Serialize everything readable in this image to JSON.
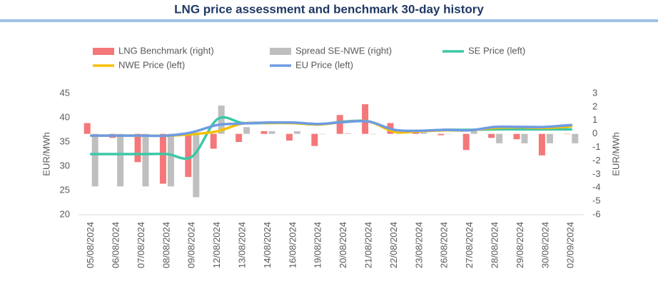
{
  "chart_data": {
    "type": "combo",
    "title": "LNG price assessment and benchmark 30-day history",
    "ylabel": "EUR/MWh",
    "y2label": "EUR/MWh",
    "categories": [
      "05/08/2024",
      "06/08/2024",
      "07/08/2024",
      "08/08/2024",
      "09/08/2024",
      "12/08/2024",
      "13/08/2024",
      "14/08/2024",
      "16/08/2024",
      "19/08/2024",
      "20/08/2024",
      "21/08/2024",
      "22/08/2024",
      "23/08/2024",
      "26/08/2024",
      "27/08/2024",
      "28/08/2024",
      "29/08/2024",
      "30/08/2024",
      "02/09/2024"
    ],
    "ylim": [
      20,
      45
    ],
    "yticks": [
      20,
      25,
      30,
      35,
      40,
      45
    ],
    "y2lim": [
      -6,
      3
    ],
    "y2ticks": [
      -6,
      -5,
      -4,
      -3,
      -2,
      -1,
      0,
      1,
      2,
      3
    ],
    "series": [
      {
        "name": "LNG Benchmark (right)",
        "type": "bar",
        "axis": "y2",
        "color": "#f4777a",
        "values": [
          0.8,
          -0.3,
          -2.1,
          -3.7,
          -3.2,
          -1.1,
          -0.6,
          0.2,
          -0.5,
          -0.9,
          1.4,
          2.2,
          0.8,
          0.1,
          -0.1,
          -1.2,
          -0.3,
          -0.4,
          -1.6,
          0
        ]
      },
      {
        "name": "Spread SE-NWE (right)",
        "type": "bar",
        "axis": "y2",
        "color": "#bfbfbf",
        "values": [
          -3.9,
          -3.9,
          -3.9,
          -3.9,
          -4.7,
          2.1,
          0.5,
          0.2,
          0.2,
          0,
          0.05,
          0,
          0,
          0.1,
          0,
          0.2,
          -0.7,
          -0.7,
          -0.7,
          -0.7
        ]
      },
      {
        "name": "SE Price (left)",
        "type": "line",
        "color": "#3cc8a6",
        "values": [
          32.5,
          32.5,
          32.5,
          32.5,
          32.0,
          39.7,
          38.9,
          38.9,
          38.9,
          38.6,
          39.2,
          39.2,
          37.2,
          37.2,
          37.5,
          37.5,
          37.6,
          37.6,
          37.6,
          37.6
        ]
      },
      {
        "name": "NWE Price (left)",
        "type": "line",
        "color": "#f5c000",
        "values": [
          36.3,
          36.3,
          36.3,
          36.3,
          36.6,
          37.2,
          38.8,
          38.9,
          38.9,
          38.6,
          39.1,
          39.2,
          37.1,
          37.2,
          37.4,
          37.4,
          37.9,
          38.0,
          37.9,
          38.2
        ]
      },
      {
        "name": "EU Price (left)",
        "type": "line",
        "color": "#6e9be3",
        "values": [
          36.3,
          36.3,
          36.3,
          36.3,
          37.0,
          38.5,
          38.8,
          39.0,
          39.0,
          38.7,
          39.1,
          39.2,
          37.5,
          37.3,
          37.5,
          37.4,
          38.1,
          38.1,
          38.1,
          38.5
        ]
      }
    ]
  }
}
